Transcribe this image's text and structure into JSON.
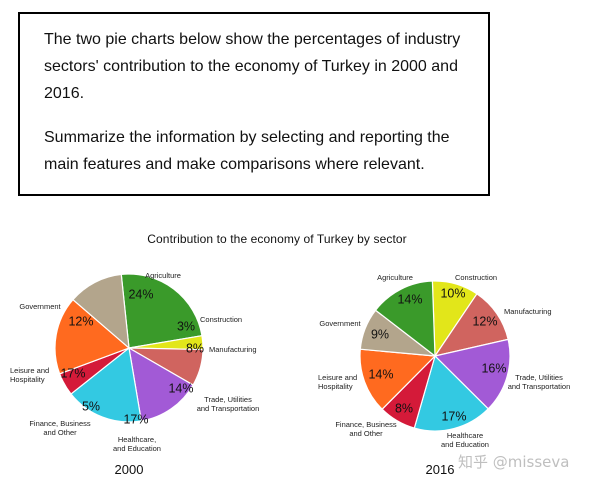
{
  "prompt": {
    "paragraph1": "The two pie charts below show the percentages of industry sectors' contribution to the economy of Turkey in 2000 and 2016.",
    "paragraph2": "Summarize the information by selecting and reporting the main features and make comparisons where relevant."
  },
  "watermark": "知乎 @misseva",
  "chart_data": [
    {
      "type": "pie",
      "title": "Contribution to the economy of Turkey by sector",
      "caption": "2000",
      "slices": [
        {
          "name": "Agriculture",
          "value": 24,
          "label": "24%",
          "color": "#3a9a2a"
        },
        {
          "name": "Construction",
          "value": 3,
          "label": "3%",
          "color": "#e2e61a"
        },
        {
          "name": "Manufacturing",
          "value": 8,
          "label": "8%",
          "color": "#d0645f"
        },
        {
          "name": "Trade, Utilities and Transportation",
          "value": 14,
          "label": "14%",
          "color": "#a25ad6"
        },
        {
          "name": "Healthcare, and Education",
          "value": 17,
          "label": "17%",
          "color": "#33c9e2"
        },
        {
          "name": "Finance, Business and Other",
          "value": 5,
          "label": "5%",
          "color": "#d41a39"
        },
        {
          "name": "Leisure and Hospitality",
          "value": 17,
          "label": "17%",
          "color": "#ff6a1f"
        },
        {
          "name": "Government",
          "value": 12,
          "label": "12%",
          "color": "#b3a58c"
        }
      ]
    },
    {
      "type": "pie",
      "title": "Contribution to the economy of Turkey by sector",
      "caption": "2016",
      "slices": [
        {
          "name": "Construction",
          "value": 10,
          "label": "10%",
          "color": "#e2e61a"
        },
        {
          "name": "Manufacturing",
          "value": 12,
          "label": "12%",
          "color": "#d0645f"
        },
        {
          "name": "Trade, Utilities and Transportation",
          "value": 16,
          "label": "16%",
          "color": "#a25ad6"
        },
        {
          "name": "Healthcare and Education",
          "value": 17,
          "label": "17%",
          "color": "#33c9e2"
        },
        {
          "name": "Finance, Business and Other",
          "value": 8,
          "label": "8%",
          "color": "#d41a39"
        },
        {
          "name": "Leisure and Hospitality",
          "value": 14,
          "label": "14%",
          "color": "#ff6a1f"
        },
        {
          "name": "Government",
          "value": 9,
          "label": "9%",
          "color": "#b3a58c"
        },
        {
          "name": "Agriculture",
          "value": 14,
          "label": "14%",
          "color": "#3a9a2a"
        }
      ]
    }
  ]
}
